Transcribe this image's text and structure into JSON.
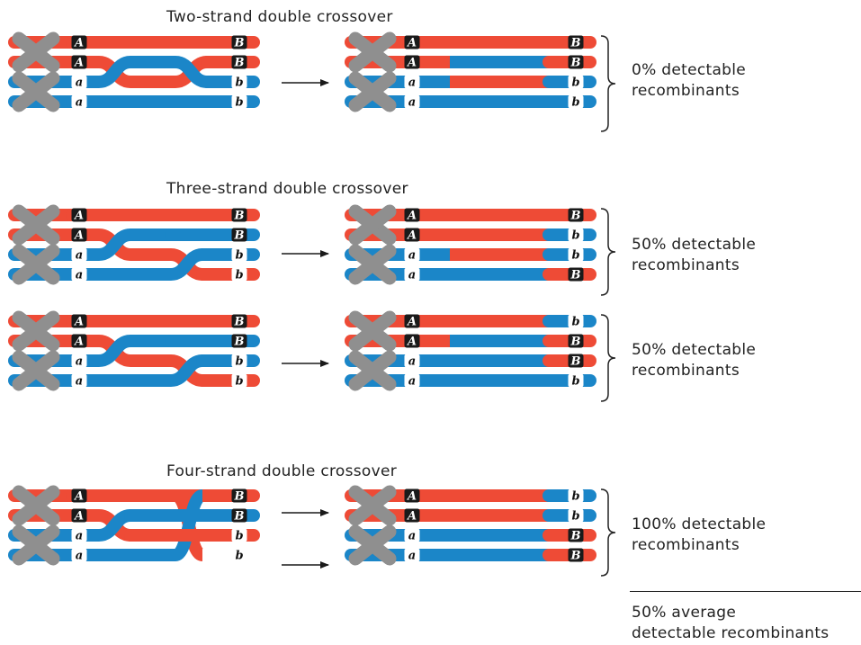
{
  "colors": {
    "dominant_strand": "#ee4b36",
    "recessive_strand": "#1b86c8",
    "centromere": "#8f8f8f",
    "dominant_allele_box": "#1a1a1a",
    "recessive_allele_box": "#ffffff",
    "text": "#222222"
  },
  "panels": [
    {
      "title": "Two-strand double crossover",
      "crossing": "two-strand",
      "groups": [
        {
          "result_strands": [
            {
              "left": "A",
              "right": "B",
              "colors": [
                "red"
              ]
            },
            {
              "left": "A",
              "right": "B",
              "colors": [
                "red",
                "blue",
                "red"
              ]
            },
            {
              "left": "a",
              "right": "b",
              "colors": [
                "blue",
                "red",
                "blue"
              ]
            },
            {
              "left": "a",
              "right": "b",
              "colors": [
                "blue"
              ]
            }
          ],
          "label": [
            "0% detectable",
            "recombinants"
          ]
        }
      ]
    },
    {
      "title": "Three-strand double crossover",
      "crossing": "three-strand",
      "groups": [
        {
          "result_strands": [
            {
              "left": "A",
              "right": "B",
              "colors": [
                "red"
              ]
            },
            {
              "left": "A",
              "right": "b",
              "colors": [
                "red",
                "blue"
              ]
            },
            {
              "left": "a",
              "right": "b",
              "colors": [
                "blue",
                "red",
                "blue"
              ]
            },
            {
              "left": "a",
              "right": "B",
              "colors": [
                "blue",
                "red"
              ]
            }
          ],
          "label": [
            "50% detectable",
            "recombinants"
          ]
        },
        {
          "result_strands": [
            {
              "left": "A",
              "right": "b",
              "colors": [
                "red",
                "blue"
              ]
            },
            {
              "left": "A",
              "right": "B",
              "colors": [
                "red",
                "blue",
                "red"
              ]
            },
            {
              "left": "a",
              "right": "B",
              "colors": [
                "blue",
                "red"
              ]
            },
            {
              "left": "a",
              "right": "b",
              "colors": [
                "blue"
              ]
            }
          ],
          "label": [
            "50% detectable",
            "recombinants"
          ]
        }
      ]
    },
    {
      "title": "Four-strand double crossover",
      "crossing": "four-strand",
      "groups": [
        {
          "result_strands": [
            {
              "left": "A",
              "right": "b",
              "colors": [
                "red",
                "blue"
              ]
            },
            {
              "left": "A",
              "right": "b",
              "colors": [
                "red",
                "blue"
              ]
            },
            {
              "left": "a",
              "right": "B",
              "colors": [
                "blue",
                "red"
              ]
            },
            {
              "left": "a",
              "right": "B",
              "colors": [
                "blue",
                "red"
              ]
            }
          ],
          "label": [
            "100% detectable",
            "recombinants"
          ]
        }
      ]
    }
  ],
  "summary": [
    "50% average",
    "detectable recombinants"
  ]
}
